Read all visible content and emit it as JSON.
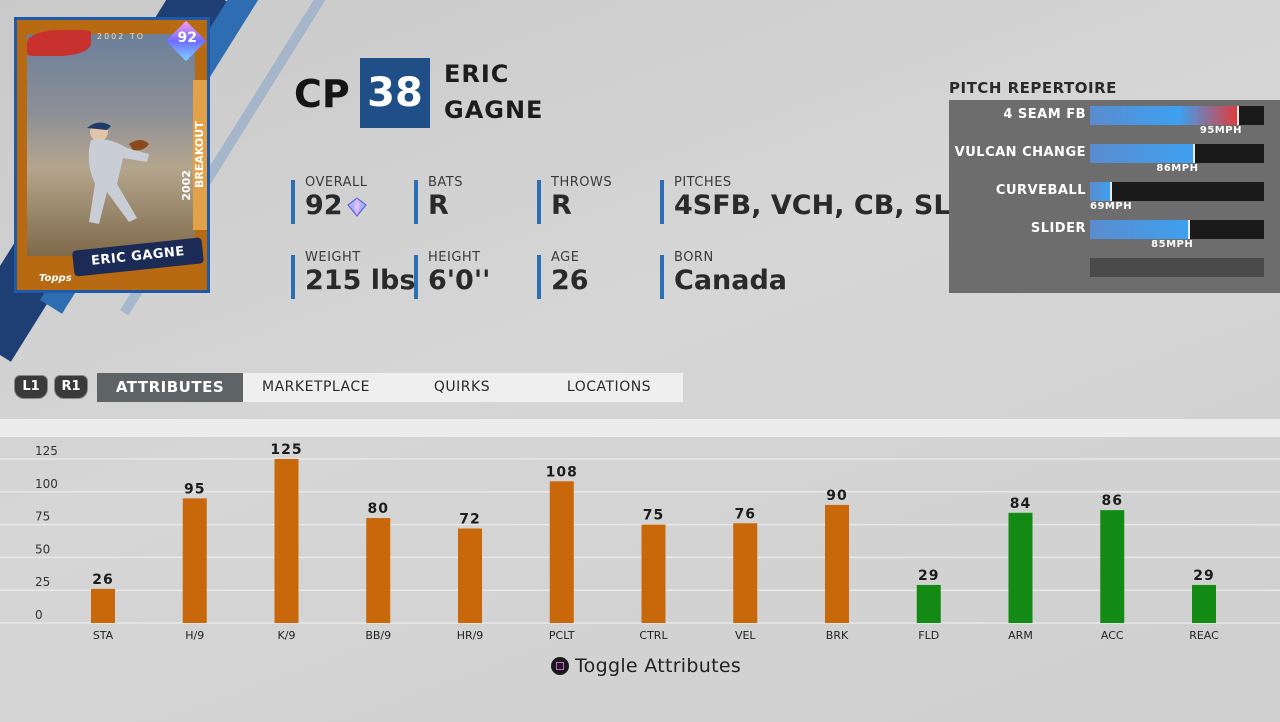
{
  "card": {
    "rating": "92",
    "name_banner": "ERIC GAGNE",
    "series_text": "BREAKOUT",
    "year_text": "2002",
    "top_text": "2002 TO",
    "brand": "Topps",
    "colors": {
      "frame": "#1e5aa8",
      "body": "#b86a12"
    }
  },
  "player": {
    "position": "CP",
    "number": "38",
    "first_name": "ERIC",
    "last_name": "GAGNE"
  },
  "stats": [
    {
      "label": "OVERALL",
      "value": "92"
    },
    {
      "label": "BATS",
      "value": "R"
    },
    {
      "label": "THROWS",
      "value": "R"
    },
    {
      "label": "PITCHES",
      "value": "4SFB, VCH, CB, SL"
    },
    {
      "label": "WEIGHT",
      "value": "215 lbs"
    },
    {
      "label": "HEIGHT",
      "value": "6'0''"
    },
    {
      "label": "AGE",
      "value": "26"
    },
    {
      "label": "BORN",
      "value": "Canada"
    }
  ],
  "repertoire": {
    "title": "PITCH REPERTOIRE",
    "pitches": [
      {
        "name": "4 SEAM FB",
        "speed": "95MPH",
        "fill": 0.85
      },
      {
        "name": "VULCAN CHANGE",
        "speed": "86MPH",
        "fill": 0.6
      },
      {
        "name": "CURVEBALL",
        "speed": "69MPH",
        "fill": 0.12
      },
      {
        "name": "SLIDER",
        "speed": "85MPH",
        "fill": 0.57
      }
    ],
    "colors": {
      "fill": "#3ea0f0",
      "max": "#e23a3a"
    }
  },
  "controller": {
    "left": "L1",
    "right": "R1"
  },
  "tabs": [
    {
      "label": "ATTRIBUTES",
      "active": true
    },
    {
      "label": "MARKETPLACE",
      "active": false
    },
    {
      "label": "QUIRKS",
      "active": false
    },
    {
      "label": "LOCATIONS",
      "active": false
    }
  ],
  "chart_data": {
    "type": "bar",
    "categories": [
      "STA",
      "H/9",
      "K/9",
      "BB/9",
      "HR/9",
      "PCLT",
      "CTRL",
      "VEL",
      "BRK",
      "FLD",
      "ARM",
      "ACC",
      "REAC"
    ],
    "values": [
      26,
      95,
      125,
      80,
      72,
      108,
      75,
      76,
      90,
      29,
      84,
      86,
      29
    ],
    "groups": [
      "pitching",
      "pitching",
      "pitching",
      "pitching",
      "pitching",
      "pitching",
      "pitching",
      "pitching",
      "pitching",
      "fielding",
      "fielding",
      "fielding",
      "fielding"
    ],
    "colors": {
      "pitching": "#c8680a",
      "fielding": "#138a13"
    },
    "yticks": [
      0,
      25,
      50,
      75,
      100,
      125
    ],
    "ylim": [
      0,
      125
    ],
    "grid": true
  },
  "toggle": {
    "label": "Toggle Attributes"
  }
}
